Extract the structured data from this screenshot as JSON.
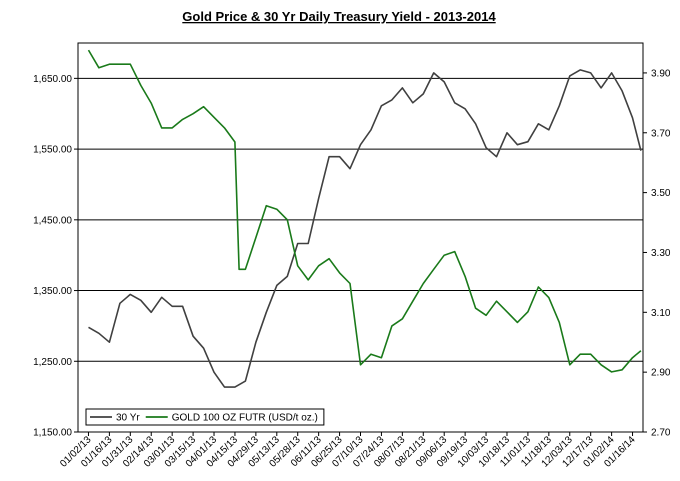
{
  "chart_data": {
    "type": "line",
    "title": "Gold Price & 30 Yr Daily Treasury Yield - 2013-2014",
    "grid": "horizontal",
    "legend_position": "bottom-left",
    "x_ticks": [
      "01/02/13",
      "01/16/13",
      "01/31/13",
      "02/14/13",
      "03/01/13",
      "03/15/13",
      "04/01/13",
      "04/15/13",
      "04/29/13",
      "05/13/13",
      "05/28/13",
      "06/11/13",
      "06/25/13",
      "07/10/13",
      "07/24/13",
      "08/07/13",
      "08/21/13",
      "09/06/13",
      "09/19/13",
      "10/03/13",
      "10/18/13",
      "11/01/13",
      "11/18/13",
      "12/03/13",
      "12/17/13",
      "01/02/14",
      "01/16/14"
    ],
    "y_left": {
      "min": 1150,
      "max": 1700,
      "ticks": [
        "1,150.00",
        "1,250.00",
        "1,350.00",
        "1,450.00",
        "1,550.00",
        "1,650.00"
      ],
      "tick_values": [
        1150,
        1250,
        1350,
        1450,
        1550,
        1650
      ]
    },
    "y_right": {
      "min": 2.7,
      "max": 4.0,
      "ticks": [
        "2.70",
        "2.90",
        "3.10",
        "3.30",
        "3.50",
        "3.70",
        "3.90"
      ],
      "tick_values": [
        2.7,
        2.9,
        3.1,
        3.3,
        3.5,
        3.7,
        3.9
      ]
    },
    "series": [
      {
        "name": "30 Yr",
        "axis": "right",
        "color": "#404040",
        "x": [
          0,
          0.5,
          1,
          1.5,
          2,
          2.5,
          3,
          3.5,
          4,
          4.5,
          5,
          5.5,
          6,
          6.5,
          7,
          7.5,
          8,
          8.5,
          9,
          9.5,
          10,
          10.5,
          11,
          11.5,
          12,
          12.5,
          13,
          13.5,
          14,
          14.5,
          15,
          15.5,
          16,
          16.5,
          17,
          17.5,
          18,
          18.5,
          19,
          19.5,
          20,
          20.5,
          21,
          21.5,
          22,
          22.5,
          23,
          23.5,
          24,
          24.5,
          25,
          25.5,
          26,
          26.4
        ],
        "values": [
          3.05,
          3.03,
          3.0,
          3.13,
          3.16,
          3.14,
          3.1,
          3.15,
          3.12,
          3.12,
          3.02,
          2.98,
          2.9,
          2.85,
          2.85,
          2.87,
          3.0,
          3.1,
          3.19,
          3.22,
          3.33,
          3.33,
          3.48,
          3.62,
          3.62,
          3.58,
          3.66,
          3.71,
          3.79,
          3.81,
          3.85,
          3.8,
          3.83,
          3.9,
          3.87,
          3.8,
          3.78,
          3.73,
          3.65,
          3.62,
          3.7,
          3.66,
          3.67,
          3.73,
          3.71,
          3.79,
          3.89,
          3.91,
          3.9,
          3.85,
          3.9,
          3.84,
          3.75,
          3.64
        ]
      },
      {
        "name": "GOLD 100 OZ FUTR (USD/t oz.)",
        "axis": "left",
        "color": "#1a7a1a",
        "x": [
          0,
          0.5,
          1,
          1.5,
          2,
          2.5,
          3,
          3.5,
          4,
          4.5,
          5,
          5.5,
          6,
          6.5,
          7,
          7.2,
          7.5,
          8,
          8.5,
          9,
          9.5,
          10,
          10.5,
          11,
          11.5,
          12,
          12.5,
          13,
          13.5,
          14,
          14.5,
          15,
          15.5,
          16,
          16.5,
          17,
          17.5,
          18,
          18.5,
          19,
          19.5,
          20,
          20.5,
          21,
          21.5,
          22,
          22.5,
          23,
          23.5,
          24,
          24.5,
          25,
          25.5,
          26,
          26.4
        ],
        "values": [
          1690,
          1665,
          1670,
          1670,
          1670,
          1640,
          1615,
          1580,
          1580,
          1592,
          1600,
          1610,
          1595,
          1580,
          1560,
          1380,
          1380,
          1425,
          1470,
          1465,
          1450,
          1385,
          1365,
          1385,
          1395,
          1375,
          1360,
          1245,
          1260,
          1255,
          1300,
          1310,
          1335,
          1360,
          1380,
          1400,
          1405,
          1370,
          1325,
          1315,
          1335,
          1320,
          1305,
          1320,
          1355,
          1340,
          1305,
          1245,
          1260,
          1260,
          1245,
          1235,
          1238,
          1255,
          1265
        ]
      }
    ]
  }
}
